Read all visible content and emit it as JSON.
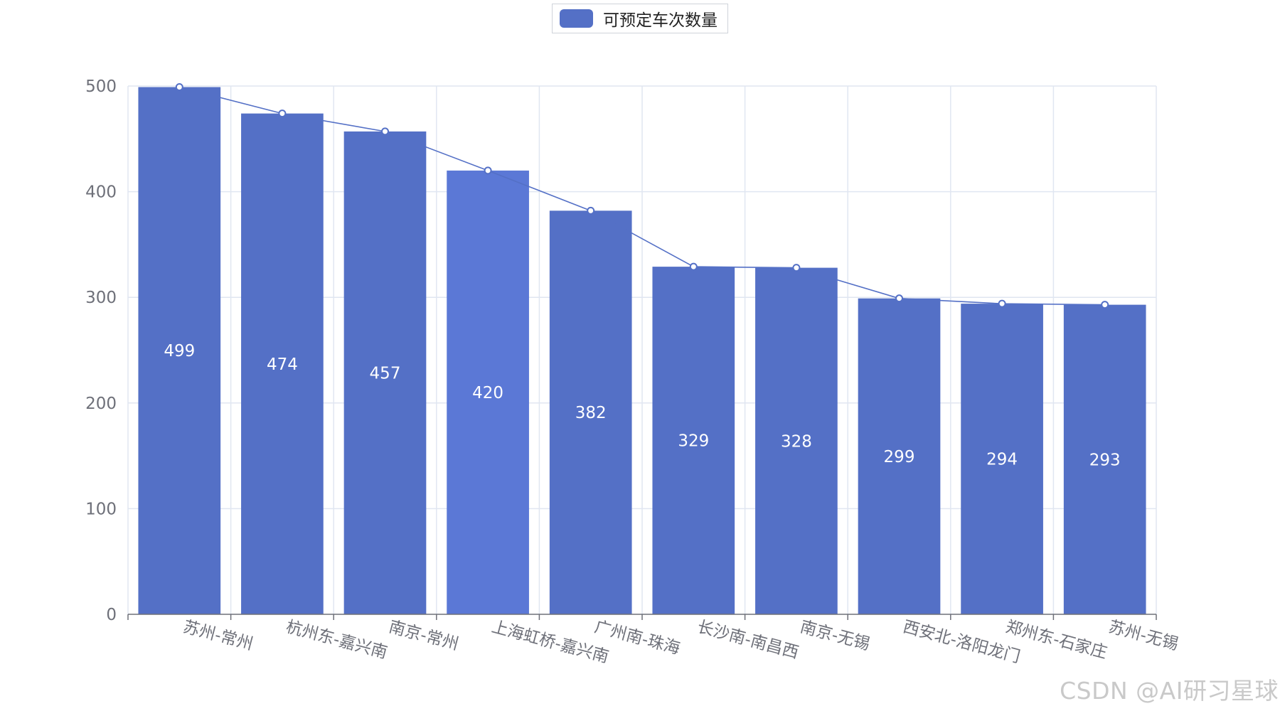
{
  "chart_data": {
    "type": "bar",
    "categories": [
      "苏州-常州",
      "杭州东-嘉兴南",
      "南京-常州",
      "上海虹桥-嘉兴南",
      "广州南-珠海",
      "长沙南-南昌西",
      "南京-无锡",
      "西安北-洛阳龙门",
      "郑州东-石家庄",
      "苏州-无锡"
    ],
    "series": [
      {
        "name": "可预定车次数量",
        "values": [
          499,
          474,
          457,
          420,
          382,
          329,
          328,
          299,
          294,
          293
        ]
      }
    ],
    "overlay_line": true,
    "data_labels": "inside",
    "ylim": [
      0,
      500
    ],
    "yticks": [
      0,
      100,
      200,
      300,
      400,
      500
    ],
    "grid": true,
    "legend_position": "top-center",
    "colors": {
      "bar": "#5470c6",
      "bar_highlight": "#5b78d6",
      "line": "#5470c6",
      "grid": "#e0e6f1",
      "axis": "#6e7079"
    }
  },
  "legend": {
    "label": "可预定车次数量"
  },
  "watermark": "CSDN @AI研习星球"
}
